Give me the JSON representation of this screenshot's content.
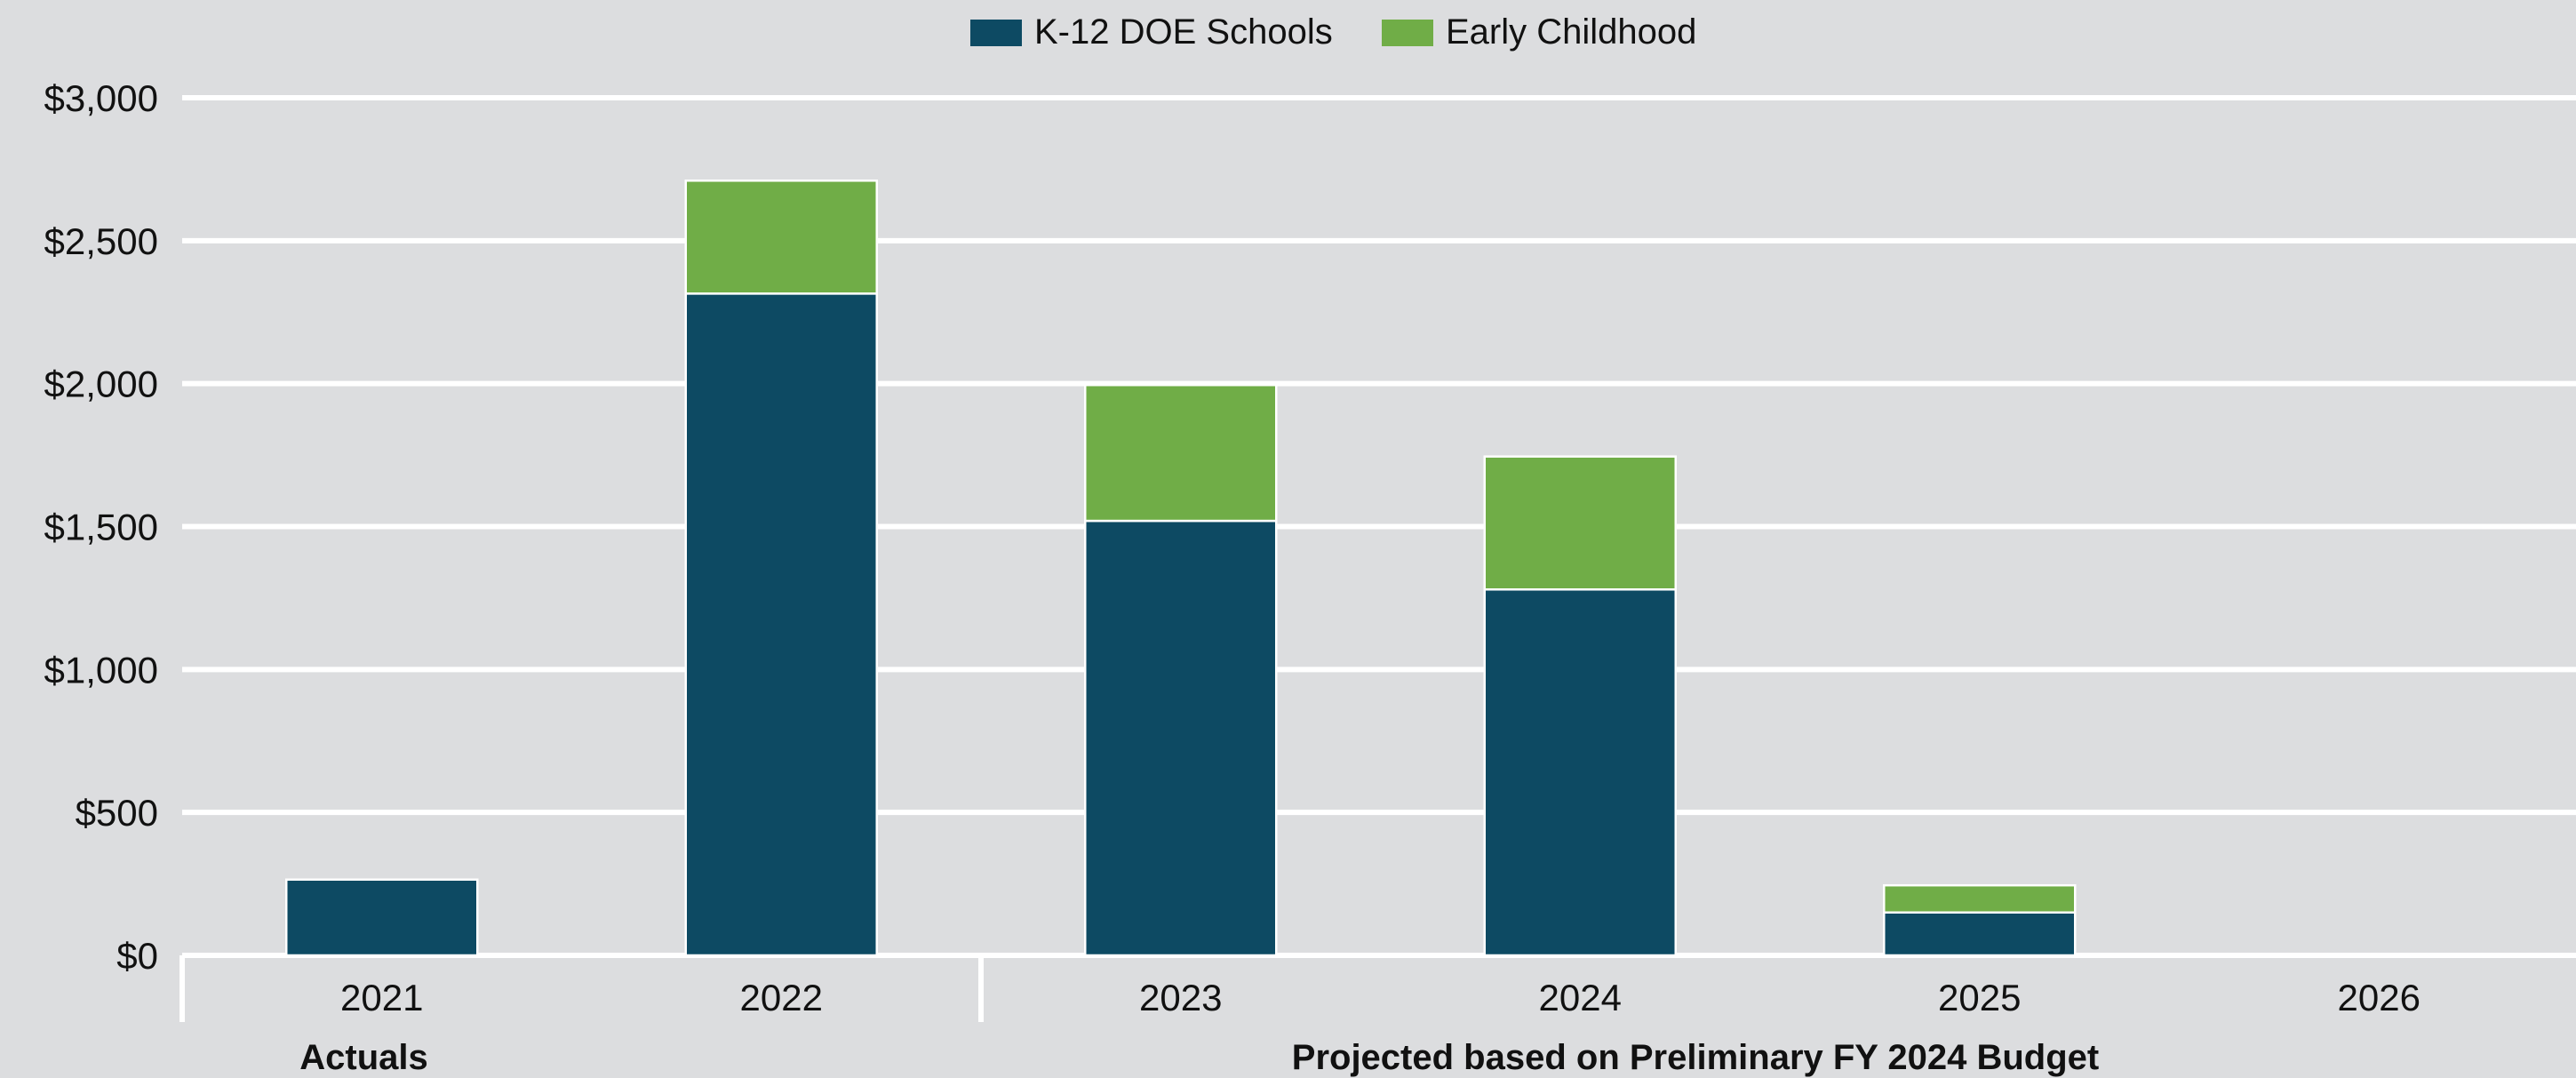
{
  "chart_data": {
    "type": "bar",
    "stacked": true,
    "title": "",
    "xlabel": "",
    "ylabel": "",
    "categories": [
      "2021",
      "2022",
      "2023",
      "2024",
      "2025",
      "2026"
    ],
    "series": [
      {
        "name": "K-12 DOE Schools",
        "color": "#0d4a63",
        "values": [
          265,
          2315,
          1520,
          1280,
          150,
          0
        ]
      },
      {
        "name": "Early Childhood",
        "color": "#70ad47",
        "values": [
          0,
          395,
          475,
          465,
          95,
          0
        ]
      }
    ],
    "ylim": [
      0,
      3000
    ],
    "y_ticks": [
      0,
      500,
      1000,
      1500,
      2000,
      2500,
      3000
    ],
    "y_tick_labels": [
      "$0",
      "$500",
      "$1,000",
      "$1,500",
      "$2,000",
      "$2,500",
      "$3,000"
    ],
    "category_groups": [
      {
        "label": "Actuals",
        "categories": [
          "2021",
          "2022"
        ]
      },
      {
        "label": "Projected based on Preliminary FY 2024 Budget",
        "categories": [
          "2023",
          "2024",
          "2025",
          "2026"
        ]
      }
    ],
    "grid": true,
    "legend": "top-center"
  }
}
